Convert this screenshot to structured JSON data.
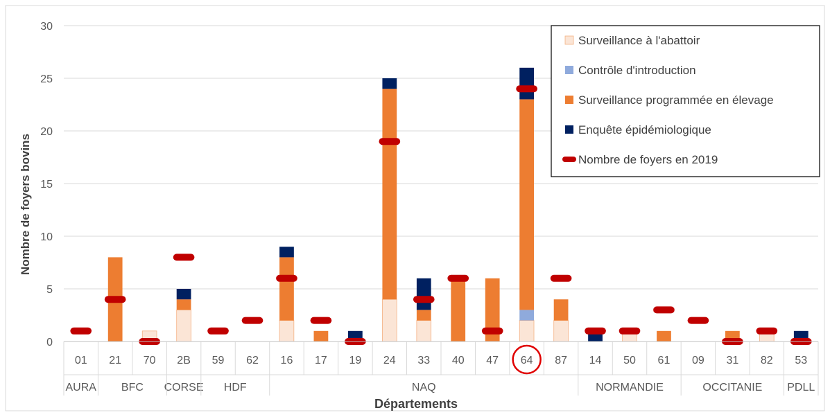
{
  "chart_data": {
    "type": "bar",
    "stacked": true,
    "xlabel": "Départements",
    "ylabel": "Nombre de foyers bovins",
    "ylim": [
      0,
      30
    ],
    "yticks": [
      0,
      5,
      10,
      15,
      20,
      25,
      30
    ],
    "grid": true,
    "legend_position": "top-right",
    "categories": [
      "01",
      "21",
      "70",
      "2B",
      "59",
      "62",
      "16",
      "17",
      "19",
      "24",
      "33",
      "40",
      "47",
      "64",
      "87",
      "14",
      "50",
      "61",
      "09",
      "31",
      "82",
      "53"
    ],
    "highlighted_category": "64",
    "groups": [
      {
        "label": "AURA",
        "categories": [
          "01"
        ]
      },
      {
        "label": "BFC",
        "categories": [
          "21",
          "70"
        ]
      },
      {
        "label": "CORSE",
        "categories": [
          "2B"
        ]
      },
      {
        "label": "HDF",
        "categories": [
          "59",
          "62"
        ]
      },
      {
        "label": "NAQ",
        "categories": [
          "16",
          "17",
          "19",
          "24",
          "33",
          "40",
          "47",
          "64",
          "87"
        ]
      },
      {
        "label": "NORMANDIE",
        "categories": [
          "14",
          "50",
          "61"
        ]
      },
      {
        "label": "OCCITANIE",
        "categories": [
          "09",
          "31",
          "82"
        ]
      },
      {
        "label": "PDLL",
        "categories": [
          "53"
        ]
      }
    ],
    "series": [
      {
        "name": "Surveillance à l'abattoir",
        "color": "#fbe5d6",
        "values": [
          0,
          0,
          1,
          3,
          0,
          0,
          2,
          0,
          0,
          4,
          2,
          0,
          0,
          2,
          2,
          0,
          1,
          0,
          0,
          0,
          1,
          0
        ]
      },
      {
        "name": "Contrôle d'introduction",
        "color": "#8faadc",
        "values": [
          0,
          0,
          0,
          0,
          0,
          0,
          0,
          0,
          0,
          0,
          0,
          0,
          0,
          1,
          0,
          0,
          0,
          0,
          0,
          0,
          0,
          0
        ]
      },
      {
        "name": "Surveillance programmée en élevage",
        "color": "#ed7d31",
        "values": [
          0,
          8,
          0,
          1,
          0,
          0,
          6,
          1,
          0,
          20,
          1,
          6,
          6,
          20,
          2,
          0,
          0,
          1,
          0,
          1,
          0,
          0
        ]
      },
      {
        "name": "Enquête épidémiologique",
        "color": "#002060",
        "values": [
          0,
          0,
          0,
          1,
          0,
          0,
          1,
          0,
          1,
          1,
          3,
          0,
          0,
          3,
          0,
          1,
          0,
          0,
          0,
          0,
          0,
          1
        ]
      }
    ],
    "reference": {
      "name": "Nombre de foyers en 2019",
      "color": "#c00000",
      "values": [
        1,
        4,
        0,
        8,
        1,
        2,
        6,
        2,
        0,
        19,
        4,
        6,
        1,
        24,
        6,
        1,
        1,
        3,
        2,
        0,
        1,
        0
      ]
    }
  }
}
